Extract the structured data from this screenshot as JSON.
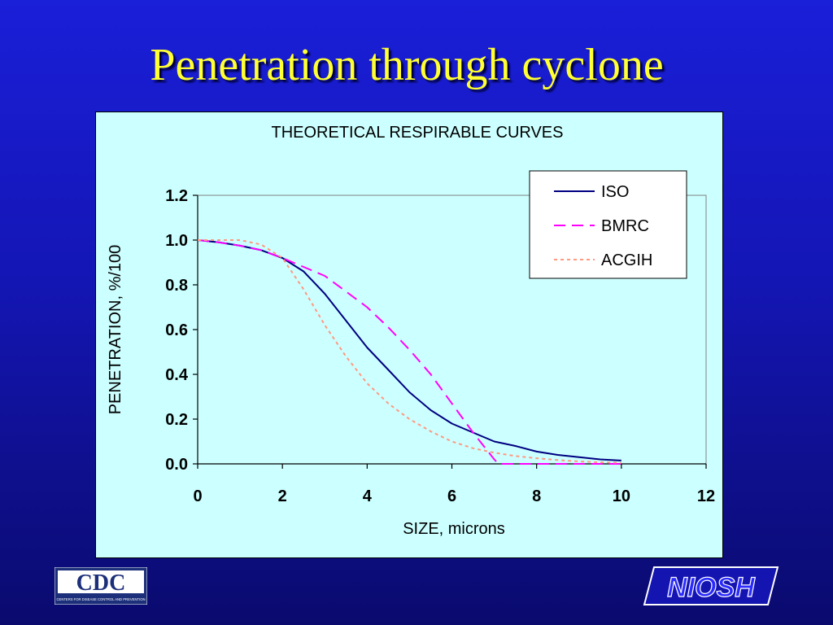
{
  "slide": {
    "title": "Penetration through cyclone"
  },
  "logos": {
    "cdc": {
      "text": "CDC",
      "subtext": "CENTERS FOR DISEASE CONTROL AND PREVENTION"
    },
    "niosh": {
      "text": "NIOSH"
    }
  },
  "colors": {
    "background": "#1a1fd8",
    "title": "#ffff33",
    "panel": "#ccffff",
    "iso": "#000080",
    "bmrc": "#ff00ff",
    "acgih": "#ff9980"
  },
  "chart_data": {
    "type": "line",
    "title": "THEORETICAL RESPIRABLE CURVES",
    "xlabel": "SIZE, microns",
    "ylabel": "PENETRATION, %/100",
    "xlim": [
      0,
      12
    ],
    "ylim": [
      0,
      1.2
    ],
    "xticks": [
      "0",
      "2",
      "4",
      "6",
      "8",
      "10",
      "12"
    ],
    "yticks": [
      "0.0",
      "0.2",
      "0.4",
      "0.6",
      "0.8",
      "1.0",
      "1.2"
    ],
    "grid": false,
    "legend_position": "top-right",
    "series": [
      {
        "name": "ISO",
        "color": "#000080",
        "dash": "solid",
        "x": [
          0,
          0.5,
          1,
          1.5,
          2,
          2.5,
          3,
          3.5,
          4,
          4.5,
          5,
          5.5,
          6,
          6.5,
          7,
          7.5,
          8,
          8.5,
          9,
          9.5,
          10
        ],
        "y": [
          1.0,
          0.99,
          0.975,
          0.955,
          0.92,
          0.86,
          0.76,
          0.64,
          0.52,
          0.42,
          0.32,
          0.24,
          0.18,
          0.14,
          0.1,
          0.08,
          0.055,
          0.04,
          0.03,
          0.02,
          0.015
        ]
      },
      {
        "name": "BMRC",
        "color": "#ff00ff",
        "dash": "dashed",
        "x": [
          0,
          0.5,
          1,
          1.5,
          2,
          2.5,
          3,
          3.5,
          4,
          4.5,
          5,
          5.5,
          6,
          6.5,
          7,
          7.1,
          8,
          9,
          10
        ],
        "y": [
          1.0,
          0.99,
          0.975,
          0.955,
          0.92,
          0.88,
          0.84,
          0.77,
          0.7,
          0.61,
          0.51,
          0.4,
          0.27,
          0.14,
          0.02,
          0.0,
          0.0,
          0.0,
          0.0
        ]
      },
      {
        "name": "ACGIH",
        "color": "#ff9980",
        "dash": "dotted",
        "x": [
          0,
          0.5,
          1,
          1.5,
          2,
          2.5,
          3,
          3.5,
          4,
          4.5,
          5,
          5.5,
          6,
          6.5,
          7,
          7.5,
          8,
          8.5,
          9,
          9.5,
          10
        ],
        "y": [
          1.0,
          1.0,
          1.0,
          0.98,
          0.92,
          0.78,
          0.62,
          0.48,
          0.36,
          0.27,
          0.2,
          0.145,
          0.1,
          0.07,
          0.05,
          0.035,
          0.025,
          0.017,
          0.011,
          0.007,
          0.005
        ]
      }
    ]
  }
}
